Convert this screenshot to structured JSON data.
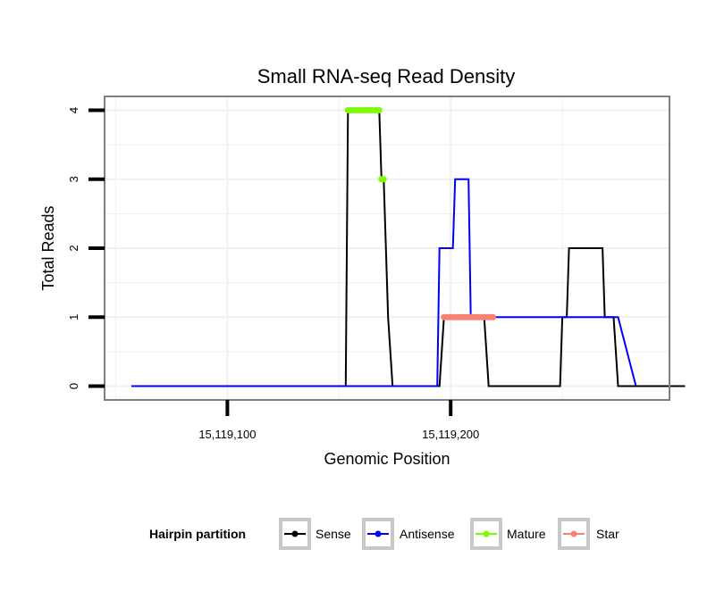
{
  "chart_data": {
    "type": "line",
    "title": "Small RNA-seq Read Density",
    "xlabel": "Genomic Position",
    "ylabel": "Total Reads",
    "xlim": [
      15119045,
      15119298
    ],
    "ylim": [
      -0.2,
      4.2
    ],
    "x_ticks": [
      {
        "value": 15119100,
        "label": "15,119,100"
      },
      {
        "value": 15119200,
        "label": "15,119,200"
      }
    ],
    "y_ticks": [
      {
        "value": 0,
        "label": "0"
      },
      {
        "value": 1,
        "label": "1"
      },
      {
        "value": 2,
        "label": "2"
      },
      {
        "value": 3,
        "label": "3"
      },
      {
        "value": 4,
        "label": "4"
      }
    ],
    "grid": true,
    "legend": {
      "title": "Hairpin partition",
      "position": "bottom",
      "items": [
        {
          "name": "Sense",
          "color": "#000000"
        },
        {
          "name": "Antisense",
          "color": "#0000ff"
        },
        {
          "name": "Mature",
          "color": "#7cfc00"
        },
        {
          "name": "Star",
          "color": "#fa8072"
        }
      ]
    },
    "series": [
      {
        "name": "Sense",
        "color": "#000000",
        "x": [
          15119057,
          15119153,
          15119154,
          15119168,
          15119169,
          15119170,
          15119172,
          15119174,
          15119195,
          15119197,
          15119215,
          15119217,
          15119249,
          15119250,
          15119252,
          15119253,
          15119268,
          15119269,
          15119270,
          15119271,
          15119273,
          15119275,
          15119283,
          15119305
        ],
        "values": [
          0,
          0,
          4,
          4,
          3,
          3,
          1,
          0,
          0,
          1,
          1,
          0,
          0,
          1,
          1,
          2,
          2,
          1,
          1,
          1,
          1,
          0,
          0,
          0
        ]
      },
      {
        "name": "Antisense",
        "color": "#0000ff",
        "x": [
          15119057,
          15119194,
          15119195,
          15119201,
          15119202,
          15119208,
          15119209,
          15119275,
          15119283
        ],
        "values": [
          0,
          0,
          2,
          2,
          3,
          3,
          1,
          1,
          0
        ]
      },
      {
        "name": "Mature",
        "color": "#7cfc00",
        "x": [
          15119154,
          15119155,
          15119156,
          15119157,
          15119158,
          15119159,
          15119160,
          15119161,
          15119162,
          15119163,
          15119164,
          15119165,
          15119166,
          15119167,
          15119168,
          15119169,
          15119170
        ],
        "values": [
          4,
          4,
          4,
          4,
          4,
          4,
          4,
          4,
          4,
          4,
          4,
          4,
          4,
          4,
          4,
          3,
          3
        ]
      },
      {
        "name": "Star",
        "color": "#fa8072",
        "x": [
          15119197,
          15119198,
          15119199,
          15119200,
          15119201,
          15119202,
          15119203,
          15119204,
          15119205,
          15119206,
          15119207,
          15119208,
          15119209,
          15119210,
          15119211,
          15119212,
          15119213,
          15119214,
          15119215,
          15119216,
          15119217,
          15119218,
          15119219
        ],
        "values": [
          1,
          1,
          1,
          1,
          1,
          1,
          1,
          1,
          1,
          1,
          1,
          1,
          1,
          1,
          1,
          1,
          1,
          1,
          1,
          1,
          1,
          1,
          1
        ]
      }
    ]
  }
}
